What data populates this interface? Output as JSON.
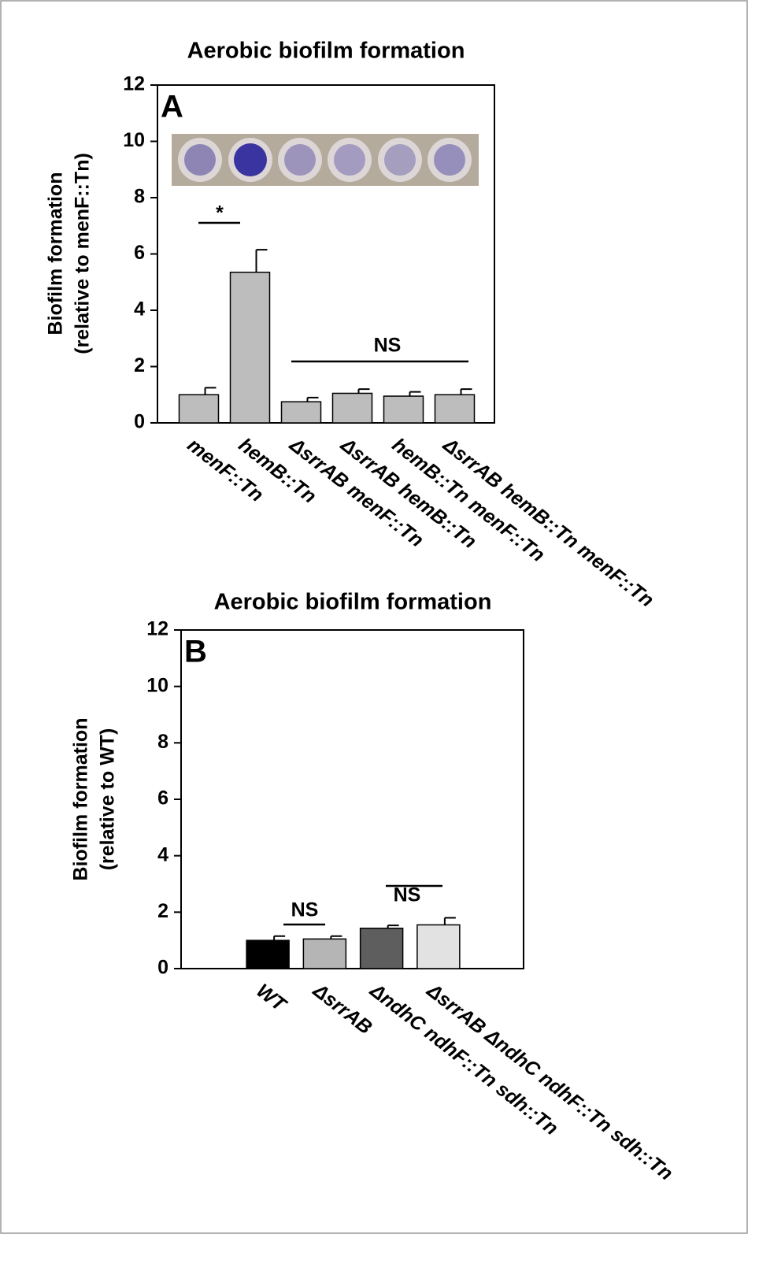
{
  "chart_data": [
    {
      "type": "bar",
      "panel_label": "A",
      "title": "Aerobic biofilm formation",
      "ylabel": [
        "Biofilm formation",
        "(relative to menF::Tn)"
      ],
      "categories": [
        "menF::Tn",
        "hemB::Tn",
        "ΔsrrAB menF::Tn",
        "ΔsrrAB hemB::Tn",
        "hemB::Tn menF::Tn",
        "ΔsrrAB hemB::Tn menF::Tn"
      ],
      "series": [
        {
          "values": [
            1.0,
            5.35,
            0.75,
            1.05,
            0.95,
            1.0
          ],
          "errors": [
            0.25,
            0.8,
            0.15,
            0.15,
            0.15,
            0.2
          ],
          "colors": [
            "#bdbdbd",
            "#bdbdbd",
            "#bdbdbd",
            "#bdbdbd",
            "#bdbdbd",
            "#bdbdbd"
          ]
        }
      ],
      "annotations": [
        "*",
        "NS"
      ],
      "ylim": [
        0,
        12
      ],
      "yticks": [
        0,
        2,
        4,
        6,
        8,
        10,
        12
      ]
    },
    {
      "type": "bar",
      "panel_label": "B",
      "title": "Aerobic biofilm formation",
      "ylabel": [
        "Biofilm formation",
        "(relative to WT)"
      ],
      "categories": [
        "WT",
        "ΔsrrAB",
        "ΔndhC ndhF::Tn sdh::Tn",
        "ΔsrrAB ΔndhC ndhF::Tn sdh::Tn"
      ],
      "series": [
        {
          "values": [
            1.0,
            1.05,
            1.43,
            1.55
          ],
          "errors": [
            0.15,
            0.1,
            0.1,
            0.25
          ],
          "colors": [
            "#000000",
            "#b5b5b5",
            "#5e5e5e",
            "#e2e2e2"
          ]
        }
      ],
      "annotations": [
        "NS",
        "NS"
      ],
      "ylim": [
        0,
        12
      ],
      "yticks": [
        0,
        2,
        4,
        6,
        8,
        10,
        12
      ]
    }
  ]
}
